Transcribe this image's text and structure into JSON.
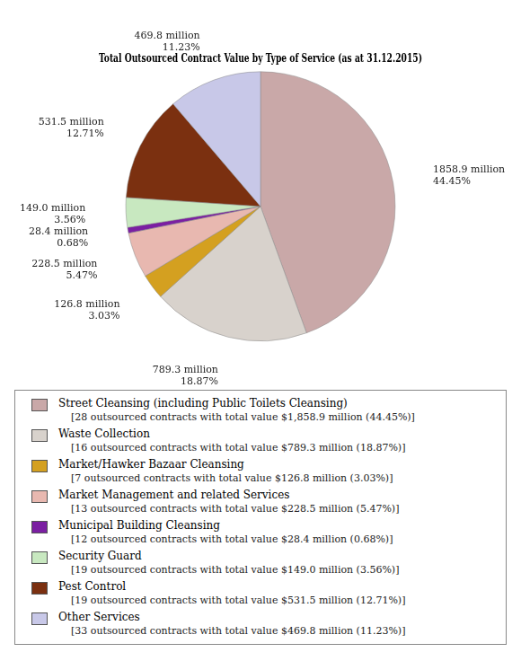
{
  "chart_data": {
    "type": "pie",
    "title": "Total Outsourced Contract Value by Type of Service (as at 31.12.2015)",
    "categories": [
      "Street Cleansing (including Public Toilets Cleansing)",
      "Waste Collection",
      "Market/Hawker Bazaar Cleansing",
      "Market Management and related Services",
      "Municipal Building Cleansing",
      "Security Guard",
      "Pest Control",
      "Other Services"
    ],
    "values": [
      1858.9,
      789.3,
      126.8,
      228.5,
      28.4,
      149.0,
      531.5,
      469.8
    ],
    "value_labels": [
      "1858.9 million\n44.45%",
      "789.3 million\n18.87%",
      "126.8 million\n3.03%",
      "228.5 million\n5.47%",
      "28.4 million\n0.68%",
      "149.0 million\n3.56%",
      "531.5 million\n12.71%",
      "469.8 million\n11.23%"
    ],
    "colors": [
      "#C9A8A8",
      "#D8D2CC",
      "#D4A020",
      "#E8B8B0",
      "#7B1FA2",
      "#C8E8C0",
      "#7B3010",
      "#C8C8E8"
    ],
    "data_labels": true,
    "legend": "bottom",
    "legend_details": [
      "[28 outsourced contracts with total value $1,858.9 million (44.45%)]",
      "[16 outsourced contracts with total value $789.3 million (18.87%)]",
      "[7 outsourced contracts with total value $126.8 million (3.03%)]",
      "[13 outsourced contracts with total value $228.5 million (5.47%)]",
      "[12 outsourced contracts with total value $28.4 million (0.68%)]",
      "[19 outsourced contracts with total value $149.0 million (3.56%)]",
      "[19 outsourced contracts with total value $531.5 million (12.71%)]",
      "[33 outsourced contracts with total value $469.8 million (11.23%)]"
    ]
  }
}
